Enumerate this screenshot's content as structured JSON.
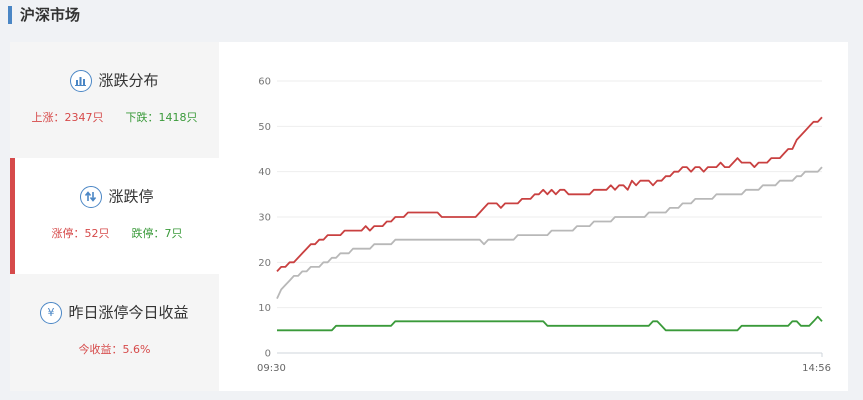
{
  "header": {
    "title": "沪深市场"
  },
  "sidebar": {
    "items": [
      {
        "title": "涨跌分布",
        "icon": "bar-chart-icon",
        "stats": [
          "上涨：2347只",
          "下跌：1418只"
        ]
      },
      {
        "title": "涨跌停",
        "icon": "up-down-arrows-icon",
        "stats": [
          "涨停：52只",
          "跌停：7只"
        ]
      },
      {
        "title": "昨日涨停今日收益",
        "icon": "yen-icon",
        "icon_glyph": "¥",
        "stats": [
          "今收益：5.6%"
        ]
      }
    ]
  },
  "colors": {
    "accent": "#4a86c5",
    "active": "#d64a4a",
    "up": "#d64a4a",
    "down": "#3a9a3a",
    "index": "#b8b8b8"
  },
  "chart_data": {
    "type": "line",
    "x_start_label": "09:30",
    "x_end_label": "14:56",
    "ylim": [
      0,
      60
    ],
    "yticks": [
      0,
      10,
      20,
      30,
      40,
      50,
      60
    ],
    "series": [
      {
        "color": "#c94040",
        "values": [
          18,
          19,
          19,
          20,
          20,
          21,
          22,
          23,
          24,
          24,
          25,
          25,
          26,
          26,
          26,
          26,
          27,
          27,
          27,
          27,
          27,
          28,
          27,
          28,
          28,
          28,
          29,
          29,
          30,
          30,
          30,
          31,
          31,
          31,
          31,
          31,
          31,
          31,
          31,
          30,
          30,
          30,
          30,
          30,
          30,
          30,
          30,
          30,
          31,
          32,
          33,
          33,
          33,
          32,
          33,
          33,
          33,
          33,
          34,
          34,
          34,
          35,
          35,
          36,
          35,
          36,
          35,
          36,
          36,
          35,
          35,
          35,
          35,
          35,
          35,
          36,
          36,
          36,
          36,
          37,
          36,
          37,
          37,
          36,
          38,
          37,
          38,
          38,
          38,
          37,
          38,
          38,
          39,
          39,
          40,
          40,
          41,
          41,
          40,
          41,
          41,
          40,
          41,
          41,
          41,
          42,
          41,
          41,
          42,
          43,
          42,
          42,
          42,
          41,
          42,
          42,
          42,
          43,
          43,
          43,
          44,
          45,
          45,
          47,
          48,
          49,
          50,
          51,
          51,
          52
        ]
      },
      {
        "color": "#b8b8b8",
        "values": [
          12,
          14,
          15,
          16,
          17,
          17,
          18,
          18,
          19,
          19,
          19,
          20,
          20,
          21,
          21,
          22,
          22,
          22,
          23,
          23,
          23,
          23,
          23,
          24,
          24,
          24,
          24,
          24,
          25,
          25,
          25,
          25,
          25,
          25,
          25,
          25,
          25,
          25,
          25,
          25,
          25,
          25,
          25,
          25,
          25,
          25,
          25,
          25,
          25,
          24,
          25,
          25,
          25,
          25,
          25,
          25,
          25,
          26,
          26,
          26,
          26,
          26,
          26,
          26,
          26,
          27,
          27,
          27,
          27,
          27,
          27,
          28,
          28,
          28,
          28,
          29,
          29,
          29,
          29,
          29,
          30,
          30,
          30,
          30,
          30,
          30,
          30,
          30,
          31,
          31,
          31,
          31,
          31,
          32,
          32,
          32,
          33,
          33,
          33,
          34,
          34,
          34,
          34,
          34,
          35,
          35,
          35,
          35,
          35,
          35,
          35,
          36,
          36,
          36,
          36,
          37,
          37,
          37,
          37,
          38,
          38,
          38,
          38,
          39,
          39,
          40,
          40,
          40,
          40,
          41
        ]
      },
      {
        "color": "#3a9a3a",
        "values": [
          5,
          5,
          5,
          5,
          5,
          5,
          5,
          5,
          5,
          5,
          5,
          5,
          5,
          5,
          6,
          6,
          6,
          6,
          6,
          6,
          6,
          6,
          6,
          6,
          6,
          6,
          6,
          6,
          7,
          7,
          7,
          7,
          7,
          7,
          7,
          7,
          7,
          7,
          7,
          7,
          7,
          7,
          7,
          7,
          7,
          7,
          7,
          7,
          7,
          7,
          7,
          7,
          7,
          7,
          7,
          7,
          7,
          7,
          7,
          7,
          7,
          7,
          7,
          7,
          6,
          6,
          6,
          6,
          6,
          6,
          6,
          6,
          6,
          6,
          6,
          6,
          6,
          6,
          6,
          6,
          6,
          6,
          6,
          6,
          6,
          6,
          6,
          6,
          6,
          7,
          7,
          6,
          5,
          5,
          5,
          5,
          5,
          5,
          5,
          5,
          5,
          5,
          5,
          5,
          5,
          5,
          5,
          5,
          5,
          5,
          6,
          6,
          6,
          6,
          6,
          6,
          6,
          6,
          6,
          6,
          6,
          6,
          7,
          7,
          6,
          6,
          6,
          7,
          8,
          7
        ]
      }
    ]
  }
}
